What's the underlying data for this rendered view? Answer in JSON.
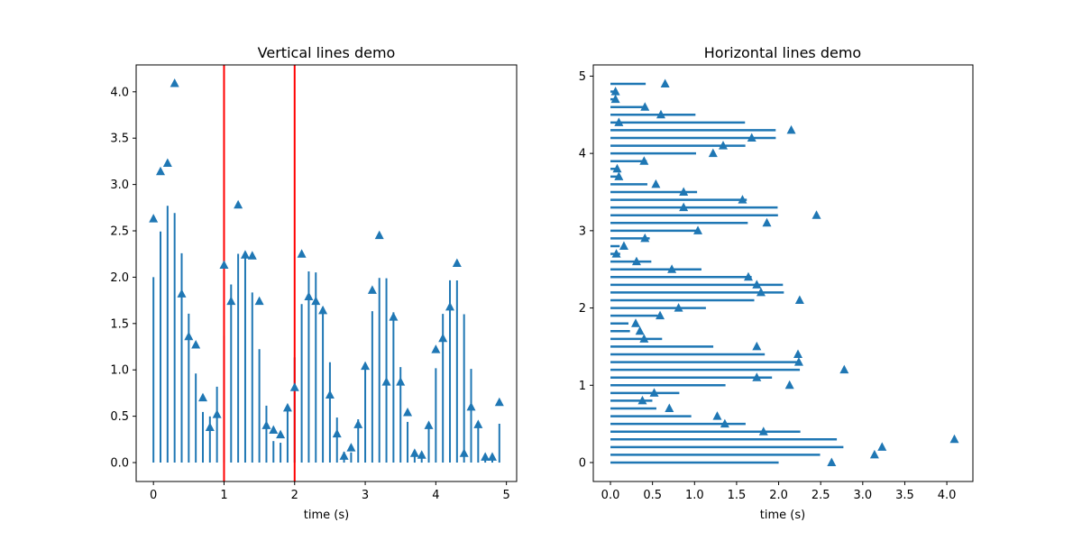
{
  "chart_data": [
    {
      "type": "line",
      "title": "Vertical lines demo",
      "xlabel": "time (s)",
      "ylabel": "",
      "xlim": [
        -0.245,
        5.145
      ],
      "ylim": [
        -0.204,
        4.29
      ],
      "xticks": [
        0,
        1,
        2,
        3,
        4,
        5
      ],
      "xtick_labels": [
        "0",
        "1",
        "2",
        "3",
        "4",
        "5"
      ],
      "yticks": [
        0,
        0.5,
        1,
        1.5,
        2,
        2.5,
        3,
        3.5,
        4
      ],
      "ytick_labels": [
        "0.0",
        "0.5",
        "1.0",
        "1.5",
        "2.0",
        "2.5",
        "3.0",
        "3.5",
        "4.0"
      ],
      "t": [
        0,
        0.1,
        0.2,
        0.3,
        0.4,
        0.5,
        0.6,
        0.7,
        0.8,
        0.9,
        1.0,
        1.1,
        1.2,
        1.3,
        1.4,
        1.5,
        1.6,
        1.7,
        1.8,
        1.9,
        2.0,
        2.1,
        2.2,
        2.3,
        2.4,
        2.5,
        2.6,
        2.7,
        2.8,
        2.9,
        3.0,
        3.1,
        3.2,
        3.3,
        3.4,
        3.5,
        3.6,
        3.7,
        3.8,
        3.9,
        4.0,
        4.1,
        4.2,
        4.3,
        4.4,
        4.5,
        4.6,
        4.7,
        4.8,
        4.9
      ],
      "line_heights": [
        2.0,
        2.493,
        2.77,
        2.692,
        2.258,
        1.607,
        0.961,
        0.546,
        0.498,
        0.819,
        1.368,
        1.921,
        2.252,
        2.224,
        1.835,
        1.223,
        0.614,
        0.232,
        0.214,
        0.562,
        1.135,
        1.71,
        2.062,
        2.051,
        1.679,
        1.082,
        0.486,
        0.116,
        0.11,
        0.467,
        1.05,
        1.633,
        1.992,
        1.988,
        1.621,
        1.03,
        0.439,
        0.074,
        0.071,
        0.432,
        1.018,
        1.604,
        1.966,
        1.965,
        1.6,
        1.011,
        0.422,
        0.058,
        0.057,
        0.419
      ],
      "markers": [
        2.63,
        3.14,
        3.23,
        4.09,
        1.82,
        1.36,
        1.27,
        0.7,
        0.38,
        0.52,
        2.13,
        1.74,
        2.78,
        2.24,
        2.23,
        1.74,
        0.4,
        0.35,
        0.3,
        0.59,
        0.81,
        2.25,
        1.79,
        1.74,
        1.64,
        0.73,
        0.31,
        0.07,
        0.16,
        0.41,
        1.04,
        1.86,
        2.45,
        0.87,
        1.57,
        0.87,
        0.54,
        0.1,
        0.08,
        0.4,
        1.22,
        1.34,
        1.68,
        2.15,
        0.1,
        0.6,
        0.41,
        0.06,
        0.06,
        0.65
      ],
      "red_vlines": [
        1,
        2
      ],
      "colors": {
        "series": "#1f77b4",
        "red": "#ff0000"
      }
    },
    {
      "type": "line",
      "title": "Horizontal lines demo",
      "xlabel": "time (s)",
      "ylabel": "",
      "xlim": [
        -0.204,
        4.31
      ],
      "ylim": [
        -0.245,
        5.145
      ],
      "xticks": [
        0,
        0.5,
        1,
        1.5,
        2,
        2.5,
        3,
        3.5,
        4
      ],
      "xtick_labels": [
        "0.0",
        "0.5",
        "1.0",
        "1.5",
        "2.0",
        "2.5",
        "3.0",
        "3.5",
        "4.0"
      ],
      "yticks": [
        0,
        1,
        2,
        3,
        4,
        5
      ],
      "ytick_labels": [
        "0",
        "1",
        "2",
        "3",
        "4",
        "5"
      ],
      "note_orientation": "horizontal",
      "colors": {
        "series": "#1f77b4"
      }
    }
  ]
}
